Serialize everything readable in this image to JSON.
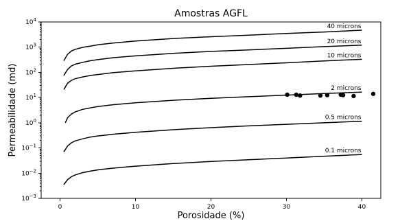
{
  "chart_data": {
    "type": "line",
    "title": "Amostras AGFL",
    "xlabel": "Porosidade (%)",
    "ylabel": "Permeabilidade (md)",
    "xlim": [
      -2.5,
      42.5
    ],
    "ylim": [
      0.001,
      10000
    ],
    "yscale": "log",
    "grid": false,
    "xticks": [
      0,
      10,
      20,
      30,
      40
    ],
    "yticks": [
      {
        "value": 0.001,
        "base": "10",
        "exp": "−3"
      },
      {
        "value": 0.01,
        "base": "10",
        "exp": "−2"
      },
      {
        "value": 0.1,
        "base": "10",
        "exp": "−1"
      },
      {
        "value": 1,
        "base": "10",
        "exp": "0"
      },
      {
        "value": 10,
        "base": "10",
        "exp": "1"
      },
      {
        "value": 100,
        "base": "10",
        "exp": "2"
      },
      {
        "value": 1000,
        "base": "10",
        "exp": "3"
      },
      {
        "value": 10000,
        "base": "10",
        "exp": "4"
      }
    ],
    "series": [
      {
        "name": "40 microns",
        "color": "#000000",
        "x": [
          0.5,
          1,
          1.5,
          2,
          3,
          4,
          5,
          7,
          10,
          15,
          20,
          25,
          30,
          35,
          40
        ],
        "y": [
          290,
          520,
          700,
          820,
          980,
          1100,
          1250,
          1450,
          1750,
          2200,
          2600,
          3000,
          3500,
          4000,
          4700
        ]
      },
      {
        "name": "20 microns",
        "color": "#000000",
        "x": [
          0.5,
          1,
          1.5,
          2,
          3,
          4,
          5,
          7,
          10,
          15,
          20,
          25,
          30,
          35,
          40
        ],
        "y": [
          75,
          130,
          180,
          210,
          250,
          290,
          320,
          380,
          450,
          570,
          680,
          780,
          900,
          1050,
          1200
        ]
      },
      {
        "name": "10 microns",
        "color": "#000000",
        "x": [
          0.5,
          1,
          1.5,
          2,
          3,
          4,
          5,
          7,
          10,
          15,
          20,
          25,
          30,
          35,
          40
        ],
        "y": [
          21,
          37,
          48,
          56,
          66,
          75,
          82,
          97,
          115,
          145,
          175,
          205,
          240,
          285,
          330
        ]
      },
      {
        "name": "2 microns",
        "color": "#000000",
        "x": [
          0.7,
          1,
          1.5,
          2,
          3,
          4,
          5,
          7,
          10,
          15,
          20,
          25,
          30,
          35,
          40
        ],
        "y": [
          1.0,
          1.6,
          2.2,
          2.7,
          3.4,
          3.9,
          4.4,
          5.2,
          6.2,
          7.8,
          9.3,
          10.8,
          12.5,
          14.5,
          16.5
        ]
      },
      {
        "name": "0.5 microns",
        "color": "#000000",
        "x": [
          0.5,
          1,
          1.5,
          2,
          3,
          4,
          5,
          7,
          10,
          15,
          20,
          25,
          30,
          35,
          40
        ],
        "y": [
          0.07,
          0.12,
          0.16,
          0.19,
          0.23,
          0.27,
          0.3,
          0.35,
          0.42,
          0.53,
          0.64,
          0.75,
          0.87,
          1.0,
          1.15
        ]
      },
      {
        "name": "0.1 microns",
        "color": "#000000",
        "x": [
          0.5,
          1,
          1.5,
          2,
          3,
          4,
          5,
          7,
          10,
          15,
          20,
          25,
          30,
          35,
          40
        ],
        "y": [
          0.0035,
          0.0055,
          0.0072,
          0.0085,
          0.0105,
          0.012,
          0.0135,
          0.0158,
          0.019,
          0.024,
          0.029,
          0.034,
          0.04,
          0.047,
          0.055
        ]
      }
    ],
    "samples": {
      "x": [
        30.1,
        31.3,
        31.8,
        34.5,
        35.4,
        37.2,
        37.5,
        38.9,
        41.5
      ],
      "y": [
        13,
        13,
        12,
        12,
        12.5,
        13,
        12.5,
        11.5,
        14
      ]
    }
  }
}
